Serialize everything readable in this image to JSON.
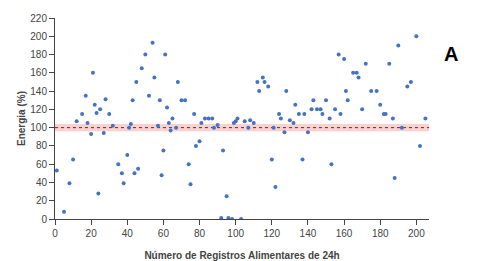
{
  "chart_data": {
    "type": "scatter",
    "xlabel": "Número de Registros Alimentares de 24h",
    "ylabel": "Energia (%)",
    "annotations": [
      "A"
    ],
    "x": [
      1,
      5,
      8,
      10,
      12,
      15,
      17,
      18,
      20,
      21,
      22,
      23,
      24,
      25,
      27,
      28,
      30,
      32,
      35,
      37,
      38,
      40,
      41,
      42,
      43,
      44,
      45,
      46,
      48,
      50,
      52,
      54,
      55,
      57,
      58,
      59,
      60,
      61,
      62,
      63,
      64,
      65,
      67,
      68,
      70,
      72,
      74,
      75,
      77,
      78,
      80,
      81,
      83,
      85,
      87,
      88,
      90,
      92,
      93,
      95,
      96,
      98,
      99,
      100,
      101,
      103,
      105,
      107,
      108,
      110,
      112,
      113,
      115,
      116,
      118,
      120,
      121,
      122,
      124,
      125,
      127,
      128,
      130,
      132,
      133,
      135,
      137,
      138,
      140,
      142,
      143,
      145,
      147,
      148,
      150,
      152,
      153,
      155,
      157,
      158,
      160,
      161,
      162,
      165,
      167,
      168,
      170,
      172,
      175,
      178,
      180,
      182,
      183,
      185,
      187,
      188,
      190,
      192,
      195,
      197,
      200,
      202,
      205
    ],
    "values": [
      53,
      8,
      39,
      65,
      107,
      115,
      135,
      105,
      93,
      160,
      125,
      116,
      28,
      120,
      94,
      131,
      115,
      102,
      60,
      50,
      39,
      70,
      100,
      104,
      130,
      50,
      150,
      55,
      165,
      180,
      135,
      193,
      155,
      102,
      130,
      48,
      75,
      180,
      122,
      105,
      97,
      110,
      100,
      150,
      130,
      130,
      60,
      38,
      115,
      80,
      85,
      105,
      110,
      110,
      110,
      100,
      103,
      1,
      75,
      25,
      1,
      0,
      105,
      107,
      110,
      0,
      107,
      100,
      108,
      105,
      150,
      140,
      155,
      150,
      145,
      65,
      100,
      35,
      115,
      110,
      95,
      140,
      108,
      105,
      125,
      115,
      65,
      115,
      95,
      120,
      130,
      120,
      120,
      115,
      130,
      110,
      60,
      120,
      180,
      115,
      175,
      140,
      130,
      160,
      160,
      155,
      120,
      170,
      140,
      140,
      125,
      115,
      115,
      170,
      110,
      45,
      190,
      100,
      145,
      150,
      200,
      80,
      110
    ],
    "color": "#4472C4",
    "hline": {
      "y": 100,
      "color": "#cc0000"
    },
    "hband": {
      "lower": 96,
      "upper": 104,
      "color": "#f5b8b8"
    },
    "xlim": [
      0,
      207
    ],
    "ylim": [
      0,
      220
    ],
    "xticks": [
      0,
      20,
      40,
      60,
      80,
      100,
      120,
      140,
      160,
      180,
      200
    ],
    "yticks": [
      0,
      20,
      40,
      60,
      80,
      100,
      120,
      140,
      160,
      180,
      200,
      220
    ],
    "grid": false
  }
}
